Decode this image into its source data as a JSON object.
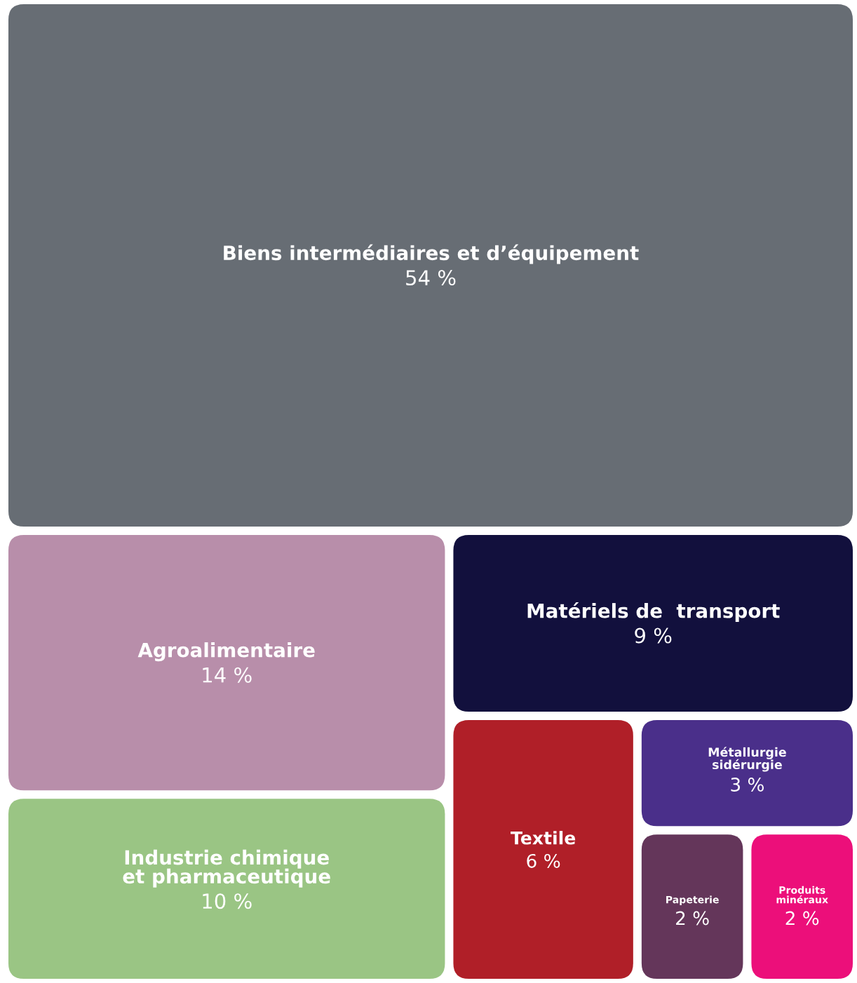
{
  "chart_data": {
    "type": "other",
    "categories": [
      "Biens intermédiaires et d’équipement",
      "Agroalimentaire",
      "Industrie chimique\net pharmaceutique",
      "Matériels de  transport",
      "Textile",
      "Métallurgie\nsidérurgie",
      "Papeterie",
      "Produits\nminéraux"
    ],
    "values": [
      54,
      14,
      10,
      9,
      6,
      3,
      2,
      2
    ],
    "value_labels": [
      "54 %",
      "14 %",
      "10 %",
      "9 %",
      "6 %",
      "3 %",
      "2 %",
      "2 %"
    ],
    "colors": [
      "#676d74",
      "#b88eaa",
      "#9ac584",
      "#12103d",
      "#b01f28",
      "#4a2f8a",
      "#64365a",
      "#ec0f7a"
    ]
  }
}
